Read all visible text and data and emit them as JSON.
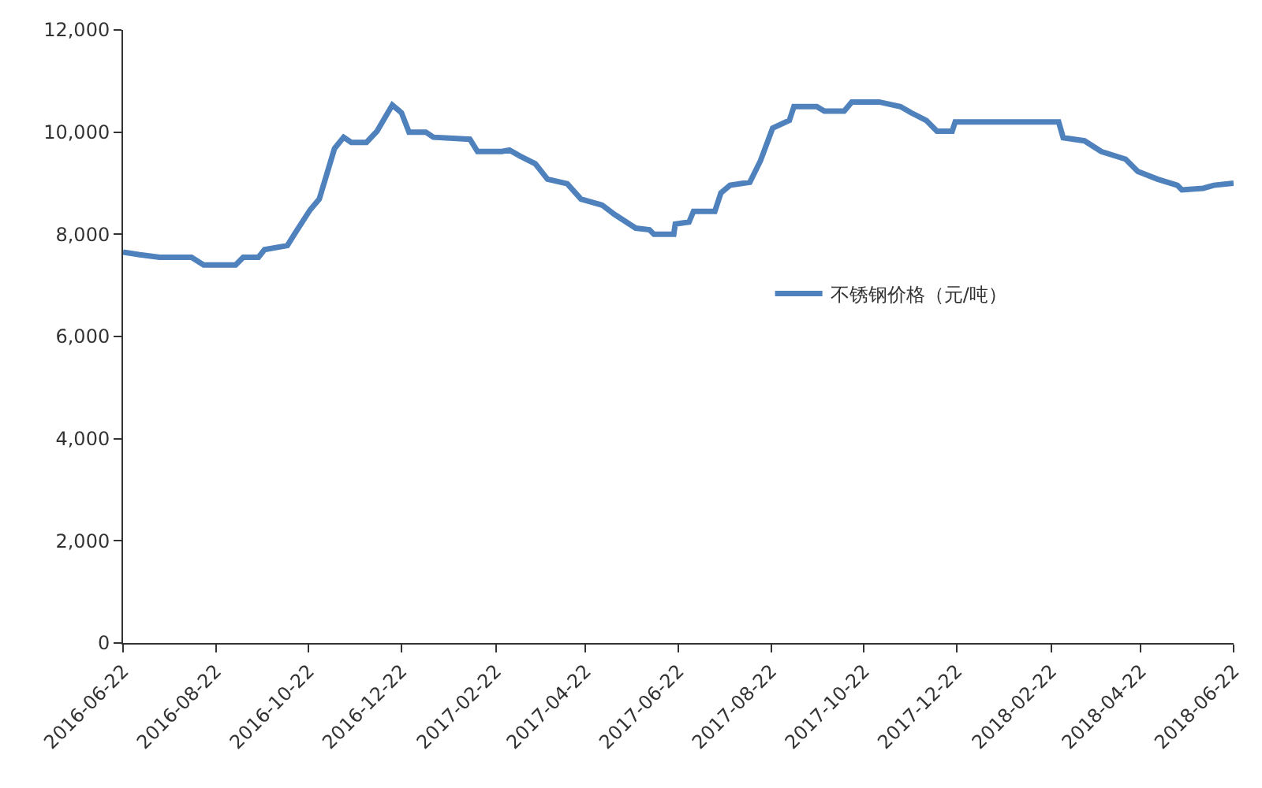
{
  "chart_data": {
    "type": "line",
    "x": [
      "2016-06-22",
      "2016-07-03",
      "2016-07-16",
      "2016-08-06",
      "2016-08-14",
      "2016-09-04",
      "2016-09-09",
      "2016-09-19",
      "2016-09-23",
      "2016-10-08",
      "2016-10-13",
      "2016-10-23",
      "2016-10-29",
      "2016-11-08",
      "2016-11-14",
      "2016-11-19",
      "2016-11-29",
      "2016-12-06",
      "2016-12-16",
      "2016-12-22",
      "2016-12-27",
      "2017-01-07",
      "2017-01-12",
      "2017-02-05",
      "2017-02-10",
      "2017-02-26",
      "2017-03-03",
      "2017-03-10",
      "2017-03-20",
      "2017-03-28",
      "2017-04-10",
      "2017-04-19",
      "2017-05-03",
      "2017-05-11",
      "2017-05-25",
      "2017-06-03",
      "2017-06-06",
      "2017-06-19",
      "2017-06-20",
      "2017-06-29",
      "2017-07-02",
      "2017-07-16",
      "2017-07-20",
      "2017-07-26",
      "2017-08-08",
      "2017-08-15",
      "2017-08-23",
      "2017-09-03",
      "2017-09-06",
      "2017-09-21",
      "2017-09-26",
      "2017-10-09",
      "2017-10-14",
      "2017-11-01",
      "2017-11-15",
      "2017-11-22",
      "2017-12-02",
      "2017-12-09",
      "2017-12-19",
      "2017-12-21",
      "2018-02-27",
      "2018-03-02",
      "2018-03-16",
      "2018-03-27",
      "2018-04-12",
      "2018-04-20",
      "2018-05-03",
      "2018-05-16",
      "2018-05-19",
      "2018-06-02",
      "2018-06-09",
      "2018-06-22"
    ],
    "series": [
      {
        "name": "不锈钢价格（元/吨）",
        "color": "#4f81bd",
        "values": [
          7650,
          7600,
          7550,
          7550,
          7400,
          7400,
          7550,
          7550,
          7700,
          7780,
          8020,
          8480,
          8690,
          9680,
          9900,
          9800,
          9800,
          10020,
          10530,
          10380,
          10000,
          10000,
          9900,
          9860,
          9620,
          9620,
          9650,
          9530,
          9380,
          9080,
          8990,
          8690,
          8570,
          8390,
          8120,
          8090,
          8000,
          8000,
          8200,
          8240,
          8450,
          8450,
          8810,
          8960,
          9020,
          9440,
          10080,
          10230,
          10500,
          10500,
          10410,
          10410,
          10590,
          10590,
          10500,
          10380,
          10230,
          10020,
          10020,
          10200,
          10200,
          9890,
          9830,
          9620,
          9470,
          9230,
          9080,
          8960,
          8870,
          8900,
          8960,
          9000
        ]
      }
    ],
    "xlim": [
      "2016-06-22",
      "2018-06-22"
    ],
    "xticks": [
      "2016-06-22",
      "2016-08-22",
      "2016-10-22",
      "2016-12-22",
      "2017-02-22",
      "2017-04-22",
      "2017-06-22",
      "2017-08-22",
      "2017-10-22",
      "2017-12-22",
      "2018-02-22",
      "2018-04-22",
      "2018-06-22"
    ],
    "ylim": [
      0,
      12000
    ],
    "yticks": [
      0,
      {
        "value": 2000,
        "label": "2,000"
      },
      {
        "value": 4000,
        "label": "4,000"
      },
      {
        "value": 6000,
        "label": "6,000"
      },
      {
        "value": 8000,
        "label": "8,000"
      },
      {
        "value": 10000,
        "label": "10,000"
      },
      {
        "value": 12000,
        "label": "12,000"
      }
    ],
    "legend": "right",
    "marker": "none",
    "line_style": "solid"
  }
}
